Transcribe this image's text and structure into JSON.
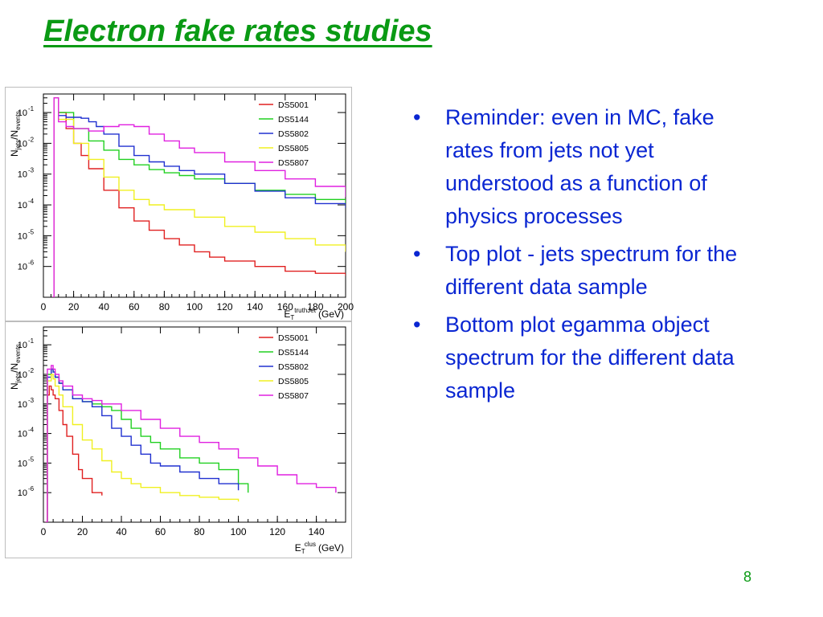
{
  "slide": {
    "title": "Electron fake rates studies",
    "title_color": "#0a9a14",
    "bullets": [
      "Reminder: even in MC, fake rates from jets not yet understood as a function of physics processes",
      "Top plot - jets spectrum for the different data sample",
      "Bottom plot egamma object spectrum for the different data sample"
    ],
    "bullet_glyph": "•",
    "bullet_color": "#0a26d2",
    "page_number": "8"
  },
  "chart_data": [
    {
      "type": "line",
      "scale": "log-y",
      "ylabel_main": "N",
      "ylabel_sub": "jets",
      "ylabel_sep": "/N",
      "ylabel_sub2": "events",
      "xlabel_main": "E",
      "xlabel_sup": "truthJet",
      "xlabel_sub": "T",
      "xlabel_unit": "(GeV)",
      "xlim": [
        0,
        200
      ],
      "ylim": [
        1e-07,
        0.4
      ],
      "x_ticks": [
        0,
        20,
        40,
        60,
        80,
        100,
        120,
        140,
        160,
        180,
        200
      ],
      "x_tick_labels": [
        "0",
        "20",
        "40",
        "60",
        "80",
        "100",
        "120",
        "140",
        "160",
        "180",
        "200"
      ],
      "y_ticks": [
        1e-06,
        1e-05,
        0.0001,
        0.001,
        0.01,
        0.1
      ],
      "y_tick_labels": [
        [
          "10",
          "-6"
        ],
        [
          "10",
          "-5"
        ],
        [
          "10",
          "-4"
        ],
        [
          "10",
          "-3"
        ],
        [
          "10",
          "-2"
        ],
        [
          "10",
          "-1"
        ]
      ],
      "legend_position": "top-right",
      "series": [
        {
          "name": "DS5001",
          "color": "#e02020",
          "x": [
            7,
            10,
            15,
            20,
            25,
            30,
            40,
            50,
            60,
            70,
            80,
            90,
            100,
            110,
            120,
            140,
            160,
            180,
            200
          ],
          "y": [
            0.3,
            0.1,
            0.03,
            0.01,
            0.004,
            0.0015,
            0.0003,
            8e-05,
            3e-05,
            1.5e-05,
            8e-06,
            5e-06,
            3e-06,
            2e-06,
            1.5e-06,
            1e-06,
            7e-07,
            6e-07,
            5e-07
          ]
        },
        {
          "name": "DS5144",
          "color": "#20d020",
          "x": [
            7,
            10,
            20,
            30,
            40,
            50,
            60,
            70,
            80,
            90,
            100,
            120,
            140,
            160,
            180,
            200
          ],
          "y": [
            0.3,
            0.1,
            0.03,
            0.012,
            0.006,
            0.003,
            0.002,
            0.0014,
            0.0011,
            0.0009,
            0.0007,
            0.0005,
            0.0003,
            0.00022,
            0.00015,
            0.0001
          ]
        },
        {
          "name": "DS5802",
          "color": "#2030d0",
          "x": [
            7,
            10,
            15,
            20,
            25,
            30,
            35,
            40,
            50,
            60,
            70,
            80,
            90,
            100,
            120,
            140,
            160,
            180,
            200
          ],
          "y": [
            0.3,
            0.08,
            0.07,
            0.07,
            0.065,
            0.05,
            0.035,
            0.02,
            0.008,
            0.004,
            0.0025,
            0.0018,
            0.0013,
            0.001,
            0.0005,
            0.00028,
            0.00017,
            0.00011,
            8e-05
          ]
        },
        {
          "name": "DS5805",
          "color": "#f0f020",
          "x": [
            7,
            10,
            20,
            30,
            40,
            50,
            60,
            70,
            80,
            100,
            120,
            140,
            160,
            180,
            200
          ],
          "y": [
            0.3,
            0.06,
            0.01,
            0.003,
            0.0008,
            0.0003,
            0.00015,
            0.0001,
            7e-05,
            4e-05,
            2e-05,
            1.3e-05,
            8e-06,
            5e-06,
            3e-06
          ]
        },
        {
          "name": "DS5807",
          "color": "#e020e0",
          "x": [
            7,
            10,
            15,
            20,
            30,
            40,
            50,
            60,
            70,
            80,
            90,
            100,
            120,
            140,
            160,
            180,
            200
          ],
          "y": [
            0.3,
            0.05,
            0.035,
            0.03,
            0.025,
            0.035,
            0.04,
            0.035,
            0.02,
            0.012,
            0.007,
            0.005,
            0.0025,
            0.0013,
            0.0007,
            0.0004,
            0.00018
          ]
        }
      ]
    },
    {
      "type": "line",
      "scale": "log-y",
      "ylabel_main": "N",
      "ylabel_sub": "jets",
      "ylabel_sep": "/N",
      "ylabel_sub2": "events",
      "xlabel_main": "E",
      "xlabel_sup": "clus",
      "xlabel_sub": "T",
      "xlabel_unit": "(GeV)",
      "xlim": [
        0,
        155
      ],
      "ylim": [
        1e-07,
        0.4
      ],
      "x_ticks": [
        0,
        20,
        40,
        60,
        80,
        100,
        120,
        140
      ],
      "x_tick_labels": [
        "0",
        "20",
        "40",
        "60",
        "80",
        "100",
        "120",
        "140"
      ],
      "y_ticks": [
        1e-06,
        1e-05,
        0.0001,
        0.001,
        0.01,
        0.1
      ],
      "y_tick_labels": [
        [
          "10",
          "-6"
        ],
        [
          "10",
          "-5"
        ],
        [
          "10",
          "-4"
        ],
        [
          "10",
          "-3"
        ],
        [
          "10",
          "-2"
        ],
        [
          "10",
          "-1"
        ]
      ],
      "legend_position": "top-right",
      "series": [
        {
          "name": "DS5001",
          "color": "#e02020",
          "x": [
            2,
            3,
            4,
            5,
            6,
            8,
            10,
            12,
            15,
            18,
            20,
            25,
            30
          ],
          "y": [
            0.002,
            0.004,
            0.003,
            0.002,
            0.0015,
            0.0006,
            0.0002,
            8e-05,
            2e-05,
            6e-06,
            3e-06,
            1e-06,
            8e-07
          ]
        },
        {
          "name": "DS5144",
          "color": "#20d020",
          "x": [
            2,
            4,
            5,
            6,
            8,
            10,
            15,
            20,
            25,
            30,
            35,
            40,
            45,
            50,
            55,
            60,
            70,
            80,
            90,
            100,
            105
          ],
          "y": [
            0.01,
            0.015,
            0.012,
            0.008,
            0.005,
            0.003,
            0.0015,
            0.0012,
            0.001,
            0.0008,
            0.0006,
            0.0003,
            0.00015,
            8e-05,
            5e-05,
            3e-05,
            1.5e-05,
            1e-05,
            6e-06,
            2e-06,
            1e-06
          ]
        },
        {
          "name": "DS5802",
          "color": "#2030d0",
          "x": [
            2,
            4,
            5,
            6,
            8,
            10,
            15,
            20,
            25,
            30,
            35,
            40,
            45,
            50,
            55,
            60,
            70,
            80,
            90,
            100
          ],
          "y": [
            0.008,
            0.015,
            0.012,
            0.008,
            0.005,
            0.003,
            0.0015,
            0.0012,
            0.0008,
            0.0004,
            0.00015,
            8e-05,
            4e-05,
            2e-05,
            1e-05,
            8e-06,
            5e-06,
            3e-06,
            2e-06,
            1.2e-06
          ]
        },
        {
          "name": "DS5805",
          "color": "#f0f020",
          "x": [
            2,
            4,
            5,
            6,
            8,
            10,
            15,
            20,
            25,
            30,
            35,
            40,
            45,
            50,
            60,
            70,
            80,
            90,
            100
          ],
          "y": [
            0.006,
            0.01,
            0.007,
            0.004,
            0.002,
            0.0008,
            0.0002,
            6e-05,
            3e-05,
            1.2e-05,
            5e-06,
            3e-06,
            2e-06,
            1.5e-06,
            1e-06,
            8e-07,
            7e-07,
            6e-07,
            5e-07
          ]
        },
        {
          "name": "DS5807",
          "color": "#e020e0",
          "x": [
            2,
            4,
            5,
            6,
            8,
            10,
            15,
            20,
            25,
            30,
            40,
            50,
            60,
            70,
            80,
            90,
            100,
            110,
            120,
            130,
            140,
            150
          ],
          "y": [
            0.015,
            0.02,
            0.015,
            0.01,
            0.006,
            0.004,
            0.002,
            0.0015,
            0.0013,
            0.001,
            0.0006,
            0.0003,
            0.00015,
            8e-05,
            5e-05,
            3e-05,
            1.5e-05,
            8e-06,
            4e-06,
            2e-06,
            1.5e-06,
            1e-06
          ]
        }
      ]
    }
  ]
}
